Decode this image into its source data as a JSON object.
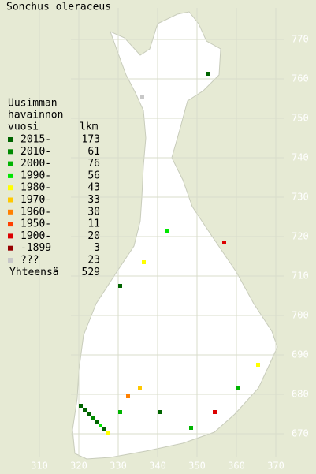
{
  "title": "Sonchus oleraceus",
  "legend": {
    "heading": [
      "Uusimman",
      "havainnon"
    ],
    "col_year": "vuosi",
    "col_count": "lkm",
    "items": [
      {
        "label": "2015-",
        "count": 173,
        "color": "#006400"
      },
      {
        "label": "2010-",
        "count": 61,
        "color": "#008a00"
      },
      {
        "label": "2000-",
        "count": 76,
        "color": "#00b400"
      },
      {
        "label": "1990-",
        "count": 56,
        "color": "#00e600"
      },
      {
        "label": "1980-",
        "count": 43,
        "color": "#ffff00"
      },
      {
        "label": "1970-",
        "count": 33,
        "color": "#ffc800"
      },
      {
        "label": "1960-",
        "count": 30,
        "color": "#ff8000"
      },
      {
        "label": "1950-",
        "count": 11,
        "color": "#ff4000"
      },
      {
        "label": "1900-",
        "count": 20,
        "color": "#dc0000"
      },
      {
        "label": "-1899",
        "count": 3,
        "color": "#960000"
      },
      {
        "label": "???",
        "count": 23,
        "color": "#c8c8c8"
      }
    ],
    "total_label": "Yhteensä",
    "total": 529
  },
  "x_ticks": [
    310,
    320,
    330,
    340,
    350,
    360,
    370
  ],
  "y_ticks": [
    670,
    680,
    690,
    700,
    710,
    720,
    730,
    740,
    750,
    760,
    770
  ]
}
